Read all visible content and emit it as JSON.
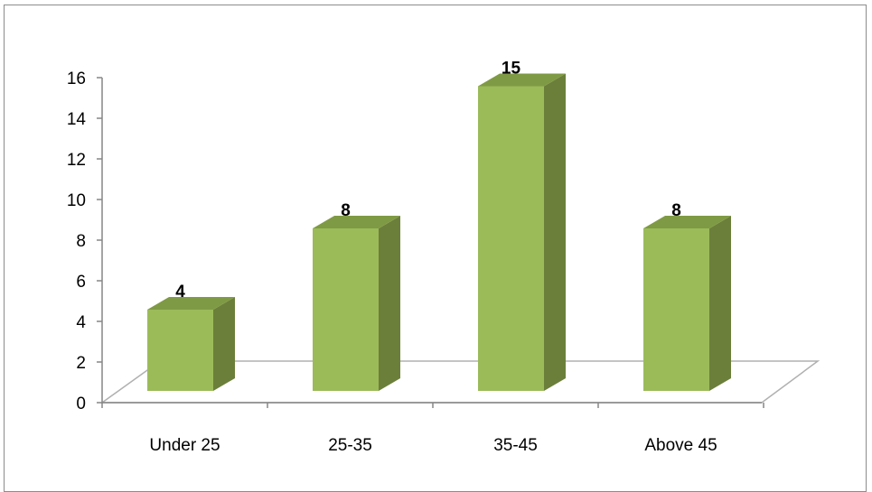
{
  "chart_data": {
    "type": "bar",
    "categories": [
      "Under 25",
      "25-35",
      "35-45",
      "Above 45"
    ],
    "values": [
      4,
      8,
      15,
      8
    ],
    "data_labels": [
      "4",
      "8",
      "15",
      "8"
    ],
    "title": "",
    "xlabel": "",
    "ylabel": "",
    "ylim": [
      0,
      16
    ],
    "yticks": [
      "0",
      "2",
      "4",
      "6",
      "8",
      "10",
      "12",
      "14",
      "16"
    ],
    "grid": false,
    "legend": "none",
    "style": "3d-column"
  },
  "colors": {
    "bar_front": "#9bbb59",
    "bar_side": "#6b7f3a",
    "bar_top": "#7f9a44",
    "axis": "#868686",
    "floor": "#ffffff"
  }
}
